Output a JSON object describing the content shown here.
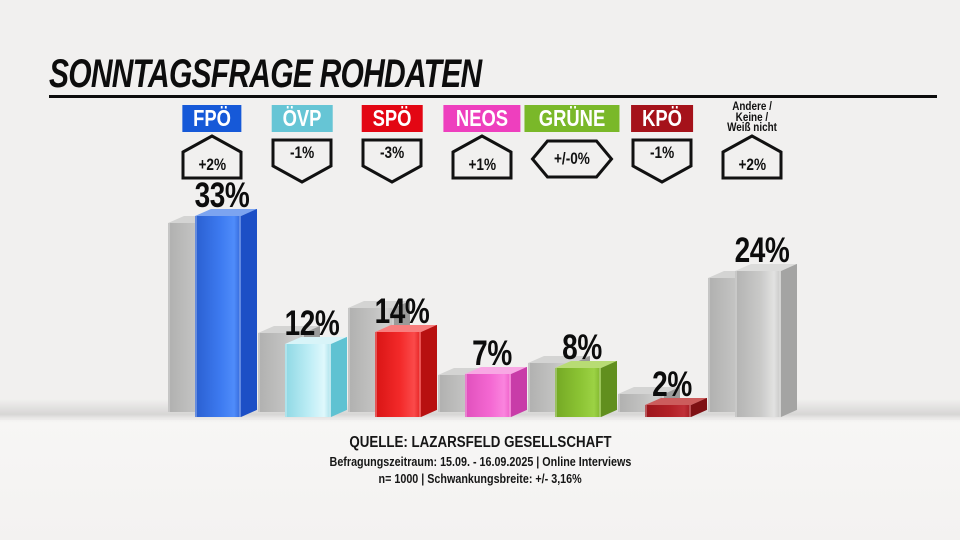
{
  "header": {
    "title": "SONNTAGSFRAGE ROHDATEN"
  },
  "footer": {
    "line1": "QUELLE: LAZARSFELD GESELLSCHAFT",
    "line2": "Befragungszeitraum: 15.09. - 16.09.2025 | Online Interviews",
    "line3": "n= 1000 | Schwankungsbreite: +/- 3,16%"
  },
  "chart_data": {
    "type": "bar",
    "title": "SONNTAGSFRAGE ROHDATEN",
    "unit": "%",
    "categories": [
      "FPÖ",
      "ÖVP",
      "SPÖ",
      "NEOS",
      "GRÜNE",
      "KPÖ",
      "Andere / Keine / Weiß nicht"
    ],
    "values": [
      33,
      12,
      14,
      7,
      8,
      2,
      24
    ],
    "changes": [
      "+2%",
      "-1%",
      "-3%",
      "+1%",
      "+/-0%",
      "-1%",
      "+2%"
    ],
    "previous_values": [
      31,
      13,
      17,
      6,
      8,
      3,
      22
    ],
    "legend": "gray bars = previous poll value, colored bars = current value",
    "gray_bar_colors": {
      "front": [
        "#b0b0af",
        "#c2c2c1",
        "#cfcfce",
        "#bcbcbb"
      ],
      "side": "#9a9a99",
      "top": "#d4d4d3"
    },
    "parties": [
      {
        "label": "FPÖ",
        "value": 33,
        "value_label": "33%",
        "change_label": "+2%",
        "trend": "up",
        "previous": 31,
        "chip": {
          "bg": "#1659d8",
          "fg": "#ffffff"
        },
        "colors": {
          "front": [
            "#2a5fd0",
            "#3d7af0",
            "#4f8cfa",
            "#3366d8"
          ],
          "side": "#1c4fc6",
          "top": "#7ca4f0"
        }
      },
      {
        "label": "ÖVP",
        "value": 12,
        "value_label": "12%",
        "change_label": "-1%",
        "trend": "down",
        "previous": 13,
        "chip": {
          "bg": "#66c5d5",
          "fg": "#ffffff"
        },
        "colors": {
          "front": [
            "#8ed8e4",
            "#c0eef6",
            "#dff8fc",
            "#a8e0ea"
          ],
          "side": "#5fc2d2",
          "top": "#d8f4f8"
        }
      },
      {
        "label": "SPÖ",
        "value": 14,
        "value_label": "14%",
        "change_label": "-3%",
        "trend": "down",
        "previous": 17,
        "chip": {
          "bg": "#e30613",
          "fg": "#ffffff"
        },
        "colors": {
          "front": [
            "#d81414",
            "#f32a2a",
            "#fa4a4a",
            "#e32020"
          ],
          "side": "#b81010",
          "top": "#f87e7e"
        }
      },
      {
        "label": "NEOS",
        "value": 7,
        "value_label": "7%",
        "change_label": "+1%",
        "trend": "up",
        "previous": 6,
        "chip": {
          "bg": "#ee3fbe",
          "fg": "#ffffff"
        },
        "colors": {
          "front": [
            "#e050bc",
            "#f468d2",
            "#fa84de",
            "#ee5ec8"
          ],
          "side": "#c83ca8",
          "top": "#f8a8e4"
        }
      },
      {
        "label": "GRÜNE",
        "value": 8,
        "value_label": "8%",
        "change_label": "+/-0%",
        "trend": "zero",
        "previous": 8,
        "chip": {
          "bg": "#7ab829",
          "fg": "#ffffff"
        },
        "colors": {
          "front": [
            "#74a824",
            "#8cc434",
            "#9cd244",
            "#7fb42c"
          ],
          "side": "#618f1e",
          "top": "#b8dc74"
        }
      },
      {
        "label": "KPÖ",
        "value": 2,
        "value_label": "2%",
        "change_label": "-1%",
        "trend": "down",
        "previous": 3,
        "chip": {
          "bg": "#a5121a",
          "fg": "#ffffff"
        },
        "colors": {
          "front": [
            "#9c161c",
            "#b22026",
            "#c03038",
            "#a41a20"
          ],
          "side": "#7e1014",
          "top": "#cc5c5c"
        }
      },
      {
        "label": "Andere / Keine / Weiß nicht",
        "label_lines": [
          "Andere /",
          "Keine /",
          "Weiß nicht"
        ],
        "value": 24,
        "value_label": "24%",
        "change_label": "+2%",
        "trend": "up",
        "previous": 22,
        "chip": null,
        "colors": {
          "front": [
            "#b3b3b2",
            "#c9c9c8",
            "#e2e2e1",
            "#c6c6c5"
          ],
          "side": "#a4a4a3",
          "top": "#dcdcdb"
        }
      }
    ]
  }
}
